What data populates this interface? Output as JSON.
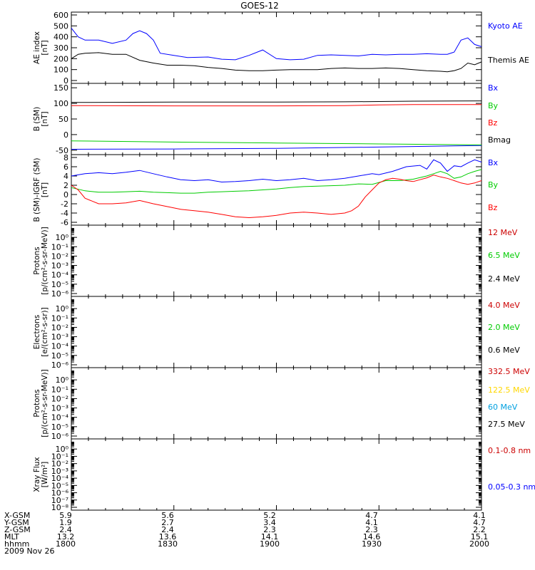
{
  "title": "GOES-12",
  "chart_data": [
    {
      "type": "line",
      "panel": "ae",
      "ylabel": [
        "AE index",
        "[nT]"
      ],
      "ylim": [
        0,
        600
      ],
      "yticks": [
        0,
        100,
        200,
        300,
        400,
        500,
        600
      ],
      "xlim": [
        0,
        120
      ],
      "series": [
        {
          "name": "Kyoto AE",
          "color": "#0000ff",
          "x": [
            0,
            2,
            4,
            8,
            12,
            16,
            18,
            20,
            22,
            24,
            26,
            30,
            34,
            40,
            44,
            48,
            52,
            56,
            60,
            64,
            68,
            72,
            76,
            80,
            84,
            88,
            92,
            96,
            100,
            104,
            108,
            110,
            112,
            114,
            116,
            118,
            120
          ],
          "y": [
            480,
            400,
            370,
            370,
            340,
            370,
            430,
            455,
            430,
            370,
            250,
            230,
            210,
            215,
            195,
            190,
            230,
            280,
            200,
            190,
            195,
            230,
            235,
            230,
            225,
            240,
            235,
            240,
            240,
            245,
            240,
            240,
            260,
            370,
            390,
            330,
            310
          ]
        },
        {
          "name": "Themis AE",
          "color": "#000000",
          "x": [
            0,
            2,
            4,
            8,
            12,
            16,
            20,
            24,
            28,
            32,
            36,
            40,
            44,
            48,
            52,
            56,
            60,
            64,
            68,
            72,
            76,
            80,
            84,
            88,
            92,
            96,
            100,
            104,
            108,
            110,
            112,
            114,
            116,
            118,
            120
          ],
          "y": [
            200,
            240,
            250,
            255,
            240,
            240,
            185,
            160,
            140,
            140,
            135,
            120,
            110,
            95,
            90,
            90,
            95,
            100,
            100,
            100,
            110,
            115,
            110,
            110,
            115,
            110,
            100,
            90,
            85,
            80,
            90,
            110,
            160,
            145,
            170
          ]
        }
      ]
    },
    {
      "type": "line",
      "panel": "b_sm",
      "ylabel": [
        "B (SM)",
        "[nT]"
      ],
      "ylim": [
        -55,
        155
      ],
      "yticks": [
        -50,
        0,
        50,
        100,
        150
      ],
      "xlim": [
        0,
        120
      ],
      "series": [
        {
          "name": "Bx",
          "color": "#0000ff",
          "x": [
            0,
            30,
            60,
            90,
            120
          ],
          "y": [
            -47,
            -46,
            -44,
            -40,
            -35
          ]
        },
        {
          "name": "By",
          "color": "#00cc00",
          "x": [
            0,
            30,
            60,
            90,
            120
          ],
          "y": [
            -20,
            -24,
            -27,
            -30,
            -33
          ]
        },
        {
          "name": "Bz",
          "color": "#ff0000",
          "x": [
            0,
            30,
            60,
            80,
            90,
            100,
            120
          ],
          "y": [
            93,
            92,
            92,
            93,
            95,
            96,
            96
          ]
        },
        {
          "name": "Bmag",
          "color": "#000000",
          "x": [
            0,
            30,
            60,
            80,
            90,
            100,
            120
          ],
          "y": [
            103,
            104,
            104,
            105,
            106,
            107,
            108
          ]
        }
      ]
    },
    {
      "type": "line",
      "panel": "b_minus_igrf",
      "ylabel": [
        "B (SM)-IGRF (SM)",
        "[nT]"
      ],
      "ylim": [
        -6,
        8
      ],
      "yticks": [
        -6,
        -4,
        -2,
        0,
        2,
        4,
        6,
        8
      ],
      "xlim": [
        0,
        120
      ],
      "series": [
        {
          "name": "Bx",
          "color": "#0000ff",
          "x": [
            0,
            4,
            8,
            12,
            16,
            20,
            24,
            28,
            32,
            36,
            40,
            44,
            48,
            52,
            56,
            60,
            64,
            68,
            72,
            76,
            80,
            84,
            88,
            90,
            94,
            98,
            102,
            104,
            106,
            108,
            110,
            112,
            114,
            116,
            118,
            120
          ],
          "y": [
            4,
            4.5,
            4.7,
            4.5,
            4.8,
            5.2,
            4.5,
            3.8,
            3.2,
            3.0,
            3.2,
            2.7,
            2.8,
            3.0,
            3.3,
            3.0,
            3.2,
            3.5,
            3.0,
            3.2,
            3.5,
            4.0,
            4.5,
            4.3,
            5.0,
            6.0,
            6.3,
            5.5,
            7.5,
            6.8,
            5.0,
            6.2,
            6.0,
            6.8,
            7.5,
            7.0
          ]
        },
        {
          "name": "By",
          "color": "#00cc00",
          "x": [
            0,
            4,
            8,
            12,
            16,
            20,
            24,
            28,
            32,
            36,
            40,
            44,
            48,
            52,
            56,
            60,
            64,
            68,
            72,
            76,
            80,
            84,
            88,
            92,
            96,
            100,
            104,
            106,
            108,
            110,
            112,
            114,
            116,
            118,
            120
          ],
          "y": [
            1.5,
            0.8,
            0.5,
            0.5,
            0.6,
            0.7,
            0.5,
            0.4,
            0.3,
            0.3,
            0.5,
            0.6,
            0.7,
            0.8,
            1.0,
            1.2,
            1.5,
            1.7,
            1.8,
            1.9,
            2.0,
            2.3,
            2.2,
            3.0,
            3.0,
            3.3,
            4.0,
            4.5,
            5.0,
            4.5,
            3.5,
            3.8,
            4.5,
            5.0,
            5.4
          ]
        },
        {
          "name": "Bz",
          "color": "#ff0000",
          "x": [
            0,
            2,
            4,
            8,
            12,
            16,
            20,
            24,
            28,
            32,
            36,
            40,
            44,
            48,
            52,
            56,
            60,
            64,
            68,
            72,
            76,
            80,
            82,
            84,
            86,
            88,
            90,
            92,
            94,
            96,
            98,
            100,
            102,
            104,
            106,
            108,
            110,
            112,
            114,
            116,
            118,
            120
          ],
          "y": [
            2.0,
            1.0,
            -0.8,
            -2.0,
            -2.0,
            -1.8,
            -1.3,
            -2.0,
            -2.6,
            -3.2,
            -3.5,
            -3.8,
            -4.3,
            -4.8,
            -5.0,
            -4.8,
            -4.5,
            -4.0,
            -3.8,
            -4.0,
            -4.3,
            -4.0,
            -3.5,
            -2.5,
            -0.5,
            1.0,
            2.5,
            3.2,
            3.5,
            3.3,
            3.0,
            2.8,
            3.2,
            3.6,
            4.2,
            3.8,
            3.5,
            3.0,
            2.5,
            2.2,
            2.5,
            3.0
          ]
        }
      ]
    },
    {
      "type": "line",
      "panel": "protons_1",
      "ylabel": [
        "Protons",
        "[p/(cm²-s-sr-MeV)]"
      ],
      "ylim_exp": [
        -6,
        1
      ],
      "scale": "log",
      "yticks": [
        "10⁰",
        "10⁻¹",
        "10⁻²",
        "10⁻³",
        "10⁻⁴",
        "10⁻⁵",
        "10⁻⁶"
      ],
      "series": [
        {
          "name": "12 MeV",
          "color": "#cc0000"
        },
        {
          "name": "6.5 MeV",
          "color": "#00cc00"
        },
        {
          "name": "2.4 MeV",
          "color": "#000000"
        }
      ]
    },
    {
      "type": "line",
      "panel": "electrons",
      "ylabel": [
        "Electrons",
        "[e/(cm²-s-sr)]"
      ],
      "ylim_exp": [
        -6,
        1
      ],
      "scale": "log",
      "yticks": [
        "10⁰",
        "10⁻¹",
        "10⁻²",
        "10⁻³",
        "10⁻⁴",
        "10⁻⁵",
        "10⁻⁶"
      ],
      "series": [
        {
          "name": "4.0 MeV",
          "color": "#cc0000"
        },
        {
          "name": "2.0 MeV",
          "color": "#00cc00"
        },
        {
          "name": "0.6 MeV",
          "color": "#000000"
        }
      ]
    },
    {
      "type": "line",
      "panel": "protons_2",
      "ylabel": [
        "Protons",
        "[p/(cm²-s-sr-MeV)]"
      ],
      "ylim_exp": [
        -6,
        1
      ],
      "scale": "log",
      "yticks": [
        "10⁰",
        "10⁻¹",
        "10⁻²",
        "10⁻³",
        "10⁻⁴",
        "10⁻⁵",
        "10⁻⁶"
      ],
      "series": [
        {
          "name": "332.5 MeV",
          "color": "#cc0000"
        },
        {
          "name": "122.5 MeV",
          "color": "#ffd700"
        },
        {
          "name": "60 MeV",
          "color": "#00a0e0"
        },
        {
          "name": "27.5 MeV",
          "color": "#000000"
        }
      ]
    },
    {
      "type": "line",
      "panel": "xray",
      "ylabel": [
        "Xray Flux",
        "[W/m²]"
      ],
      "ylim_exp": [
        -8,
        1
      ],
      "scale": "log",
      "yticks": [
        "10⁰",
        "10⁻¹",
        "10⁻²",
        "10⁻³",
        "10⁻⁴",
        "10⁻⁵",
        "10⁻⁶",
        "10⁻⁷",
        "10⁻⁸"
      ],
      "series": [
        {
          "name": "0.1-0.8 nm",
          "color": "#cc0000"
        },
        {
          "name": "0.05-0.3 nm",
          "color": "#0000ff"
        }
      ]
    }
  ],
  "ephemeris": {
    "row_labels": [
      "X-GSM",
      "Y-GSM",
      "Z-GSM",
      "MLT",
      "hhmm"
    ],
    "columns": [
      [
        "5.9",
        "1.9",
        "2.4",
        "13.2",
        "1800"
      ],
      [
        "5.6",
        "2.7",
        "2.4",
        "13.6",
        "1830"
      ],
      [
        "5.2",
        "3.4",
        "2.3",
        "14.1",
        "1900"
      ],
      [
        "4.7",
        "4.1",
        "2.3",
        "14.6",
        "1930"
      ],
      [
        "4.1",
        "4.7",
        "2.2",
        "15.1",
        "2000"
      ]
    ],
    "date": "2009 Nov 26"
  }
}
